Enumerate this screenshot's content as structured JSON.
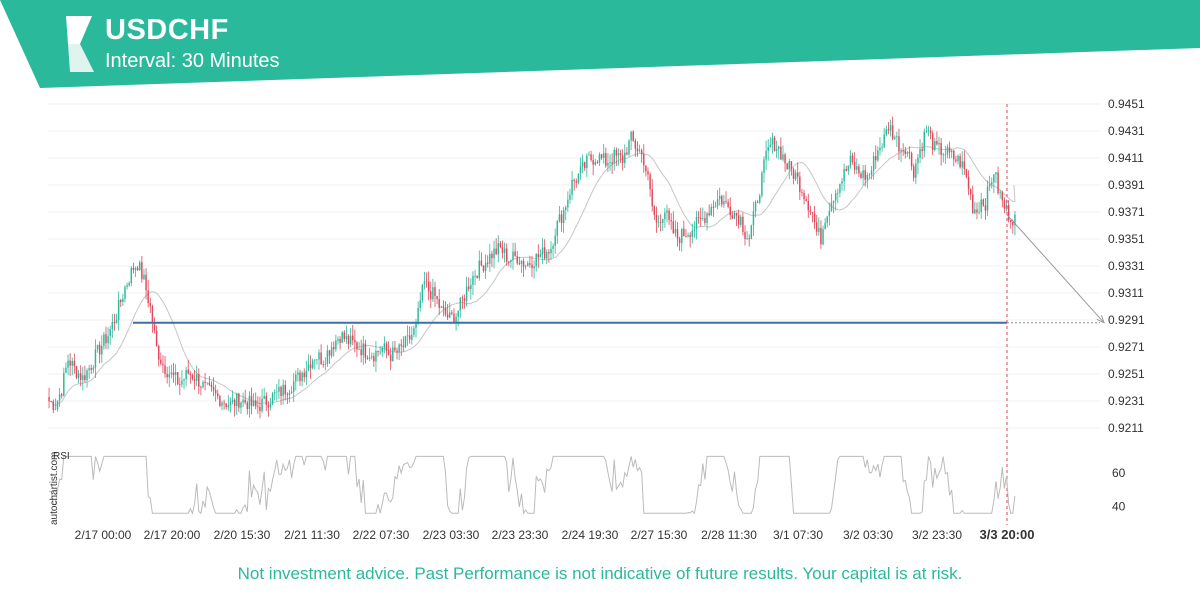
{
  "header": {
    "symbol": "USDCHF",
    "interval": "Interval: 30 Minutes",
    "brand_color": "#2bb99c",
    "logo_icon": "autochartist-logo-icon"
  },
  "watermark": "autochartist.com",
  "disclaimer": "Not investment advice. Past Performance is not indicative of future results. Your capital is at risk.",
  "chart_data": [
    {
      "type": "candlestick",
      "title": "USDCHF",
      "subtitle": "Interval: 30 Minutes",
      "y_ticks": [
        "0.9451",
        "0.9431",
        "0.9411",
        "0.9391",
        "0.9371",
        "0.9351",
        "0.9331",
        "0.9311",
        "0.9291",
        "0.9271",
        "0.9251",
        "0.9231",
        "0.9211"
      ],
      "ylim": [
        0.9211,
        0.9451
      ],
      "x_ticks": [
        "2/17 00:00",
        "2/17 20:00",
        "2/20 15:30",
        "2/21 11:30",
        "2/22 07:30",
        "2/23 03:30",
        "2/23 23:30",
        "2/24 19:30",
        "2/27 15:30",
        "2/28 11:30",
        "3/1 07:30",
        "3/2 03:30",
        "3/2 23:30",
        "3/3 20:00"
      ],
      "highlighted_x_tick": "3/3 20:00",
      "grid": true,
      "up_color": "#2bb99c",
      "down_color": "#e0475a",
      "moving_average": "light grey line",
      "support_level": 0.9289,
      "support_color": "#3f6fa8",
      "forecast_target": 0.9289,
      "price_path": [
        [
          0,
          0.9231
        ],
        [
          3,
          0.9228
        ],
        [
          6,
          0.924
        ],
        [
          9,
          0.9262
        ],
        [
          12,
          0.9255
        ],
        [
          16,
          0.9248
        ],
        [
          20,
          0.9258
        ],
        [
          24,
          0.927
        ],
        [
          28,
          0.928
        ],
        [
          32,
          0.9295
        ],
        [
          36,
          0.9315
        ],
        [
          40,
          0.933
        ],
        [
          42,
          0.9333
        ],
        [
          45,
          0.932
        ],
        [
          48,
          0.93
        ],
        [
          51,
          0.927
        ],
        [
          54,
          0.9258
        ],
        [
          58,
          0.925
        ],
        [
          62,
          0.9244
        ],
        [
          66,
          0.9252
        ],
        [
          70,
          0.9248
        ],
        [
          74,
          0.924
        ],
        [
          78,
          0.9236
        ],
        [
          82,
          0.9232
        ],
        [
          86,
          0.9228
        ],
        [
          90,
          0.9232
        ],
        [
          94,
          0.923
        ],
        [
          98,
          0.9226
        ],
        [
          102,
          0.923
        ],
        [
          106,
          0.9234
        ],
        [
          110,
          0.9238
        ],
        [
          114,
          0.9242
        ],
        [
          118,
          0.9248
        ],
        [
          122,
          0.9256
        ],
        [
          126,
          0.9265
        ],
        [
          130,
          0.9262
        ],
        [
          134,
          0.9272
        ],
        [
          138,
          0.928
        ],
        [
          142,
          0.9275
        ],
        [
          146,
          0.9272
        ],
        [
          150,
          0.9268
        ],
        [
          154,
          0.9266
        ],
        [
          158,
          0.927
        ],
        [
          162,
          0.9265
        ],
        [
          166,
          0.9268
        ],
        [
          170,
          0.9275
        ],
        [
          174,
          0.9285
        ],
        [
          176,
          0.9305
        ],
        [
          178,
          0.9318
        ],
        [
          180,
          0.9313
        ],
        [
          183,
          0.9308
        ],
        [
          186,
          0.9298
        ],
        [
          190,
          0.9292
        ],
        [
          193,
          0.9295
        ],
        [
          196,
          0.9305
        ],
        [
          199,
          0.9318
        ],
        [
          202,
          0.9326
        ],
        [
          206,
          0.9333
        ],
        [
          210,
          0.934
        ],
        [
          214,
          0.9344
        ],
        [
          218,
          0.9336
        ],
        [
          222,
          0.9338
        ],
        [
          226,
          0.9332
        ],
        [
          230,
          0.9336
        ],
        [
          234,
          0.934
        ],
        [
          238,
          0.9345
        ],
        [
          240,
          0.9358
        ],
        [
          244,
          0.9372
        ],
        [
          248,
          0.9392
        ],
        [
          252,
          0.94
        ],
        [
          256,
          0.941
        ],
        [
          260,
          0.9412
        ],
        [
          264,
          0.9408
        ],
        [
          268,
          0.9412
        ],
        [
          272,
          0.941
        ],
        [
          274,
          0.9418
        ],
        [
          276,
          0.9425
        ],
        [
          278,
          0.942
        ],
        [
          280,
          0.9416
        ],
        [
          282,
          0.941
        ],
        [
          284,
          0.9395
        ],
        [
          286,
          0.9375
        ],
        [
          288,
          0.9362
        ],
        [
          290,
          0.9368
        ],
        [
          292,
          0.9372
        ],
        [
          294,
          0.9362
        ],
        [
          296,
          0.9356
        ],
        [
          298,
          0.9352
        ],
        [
          300,
          0.9354
        ],
        [
          302,
          0.9356
        ],
        [
          306,
          0.936
        ],
        [
          310,
          0.9366
        ],
        [
          314,
          0.9375
        ],
        [
          318,
          0.9382
        ],
        [
          320,
          0.9378
        ],
        [
          324,
          0.9372
        ],
        [
          328,
          0.9366
        ],
        [
          330,
          0.9356
        ],
        [
          332,
          0.9352
        ],
        [
          334,
          0.9366
        ],
        [
          336,
          0.9382
        ],
        [
          338,
          0.9396
        ],
        [
          340,
          0.9412
        ],
        [
          342,
          0.942
        ],
        [
          344,
          0.9422
        ],
        [
          346,
          0.9418
        ],
        [
          348,
          0.9412
        ],
        [
          350,
          0.9405
        ],
        [
          354,
          0.9398
        ],
        [
          358,
          0.9385
        ],
        [
          362,
          0.937
        ],
        [
          364,
          0.9356
        ],
        [
          366,
          0.9352
        ],
        [
          368,
          0.9368
        ],
        [
          372,
          0.9384
        ],
        [
          376,
          0.9396
        ],
        [
          380,
          0.9408
        ],
        [
          384,
          0.94
        ],
        [
          388,
          0.9397
        ],
        [
          390,
          0.9402
        ],
        [
          392,
          0.9414
        ],
        [
          396,
          0.9425
        ],
        [
          398,
          0.9435
        ],
        [
          400,
          0.943
        ],
        [
          402,
          0.9424
        ],
        [
          404,
          0.9418
        ],
        [
          406,
          0.942
        ],
        [
          408,
          0.9412
        ],
        [
          410,
          0.9402
        ],
        [
          414,
          0.9422
        ],
        [
          416,
          0.9432
        ],
        [
          418,
          0.9426
        ],
        [
          420,
          0.9418
        ],
        [
          424,
          0.9416
        ],
        [
          428,
          0.9412
        ],
        [
          432,
          0.9408
        ],
        [
          434,
          0.9402
        ],
        [
          436,
          0.939
        ],
        [
          438,
          0.9375
        ],
        [
          440,
          0.9372
        ],
        [
          442,
          0.938
        ],
        [
          444,
          0.9378
        ],
        [
          446,
          0.939
        ],
        [
          448,
          0.9402
        ],
        [
          450,
          0.9388
        ],
        [
          452,
          0.9378
        ],
        [
          454,
          0.9372
        ],
        [
          456,
          0.9368
        ],
        [
          458,
          0.9366
        ]
      ]
    },
    {
      "type": "line",
      "title": "RSI",
      "y_ticks": [
        "60",
        "40"
      ],
      "ylim": [
        35,
        75
      ],
      "line_color": "#bbbbbb"
    }
  ]
}
